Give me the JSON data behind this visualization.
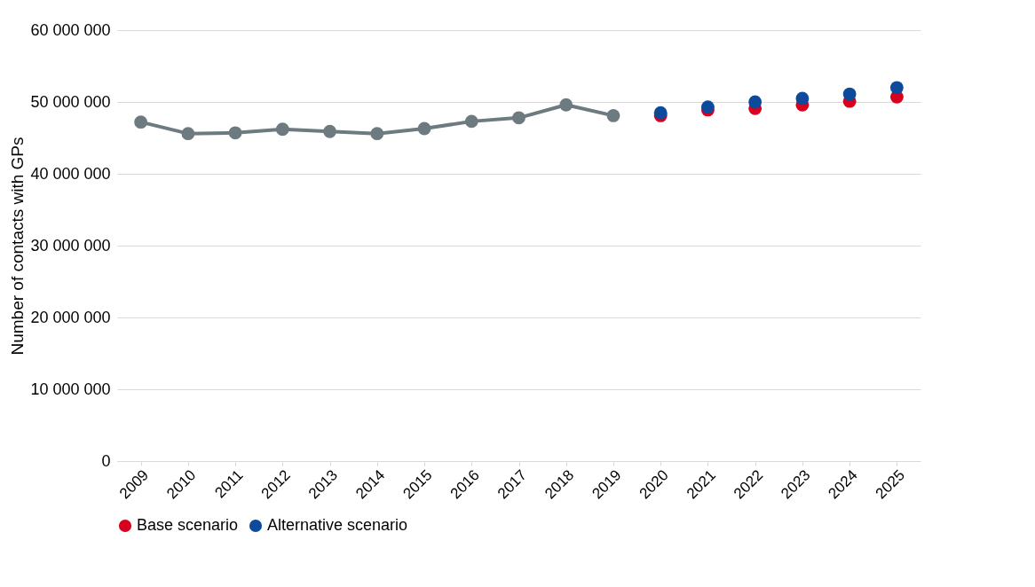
{
  "chart_data": {
    "type": "line",
    "ylabel": "Number  of contacts with GPs",
    "categories": [
      "2009",
      "2010",
      "2011",
      "2012",
      "2013",
      "2014",
      "2015",
      "2016",
      "2017",
      "2018",
      "2019",
      "2020",
      "2021",
      "2022",
      "2023",
      "2024",
      "2025"
    ],
    "ylim": [
      0,
      60000000
    ],
    "yticks": [
      {
        "value": 0,
        "label": "0"
      },
      {
        "value": 10000000,
        "label": "10 000 000"
      },
      {
        "value": 20000000,
        "label": "20 000 000"
      },
      {
        "value": 30000000,
        "label": "30 000 000"
      },
      {
        "value": 40000000,
        "label": "40 000 000"
      },
      {
        "value": 50000000,
        "label": "50 000 000"
      },
      {
        "value": 60000000,
        "label": "60 000 000"
      }
    ],
    "grid": "y",
    "legend": "bottom",
    "marker": "circle",
    "line_style": "solid",
    "series": [
      {
        "color": "#6d7b80",
        "values": [
          47200000,
          45600000,
          45700000,
          46200000,
          45900000,
          45600000,
          46300000,
          47300000,
          47800000,
          49600000,
          48100000,
          null,
          null,
          null,
          null,
          null,
          null
        ]
      },
      {
        "type": "scatter",
        "name": "Base scenario",
        "color": "#d7001e",
        "values": [
          null,
          null,
          null,
          null,
          null,
          null,
          null,
          null,
          null,
          null,
          null,
          48100000,
          48900000,
          49100000,
          49600000,
          50100000,
          50700000
        ]
      },
      {
        "type": "scatter",
        "name": "Alternative scenario",
        "color": "#0d4a9b",
        "values": [
          null,
          null,
          null,
          null,
          null,
          null,
          null,
          null,
          null,
          null,
          null,
          48500000,
          49300000,
          50000000,
          50500000,
          51100000,
          52000000
        ]
      }
    ]
  }
}
